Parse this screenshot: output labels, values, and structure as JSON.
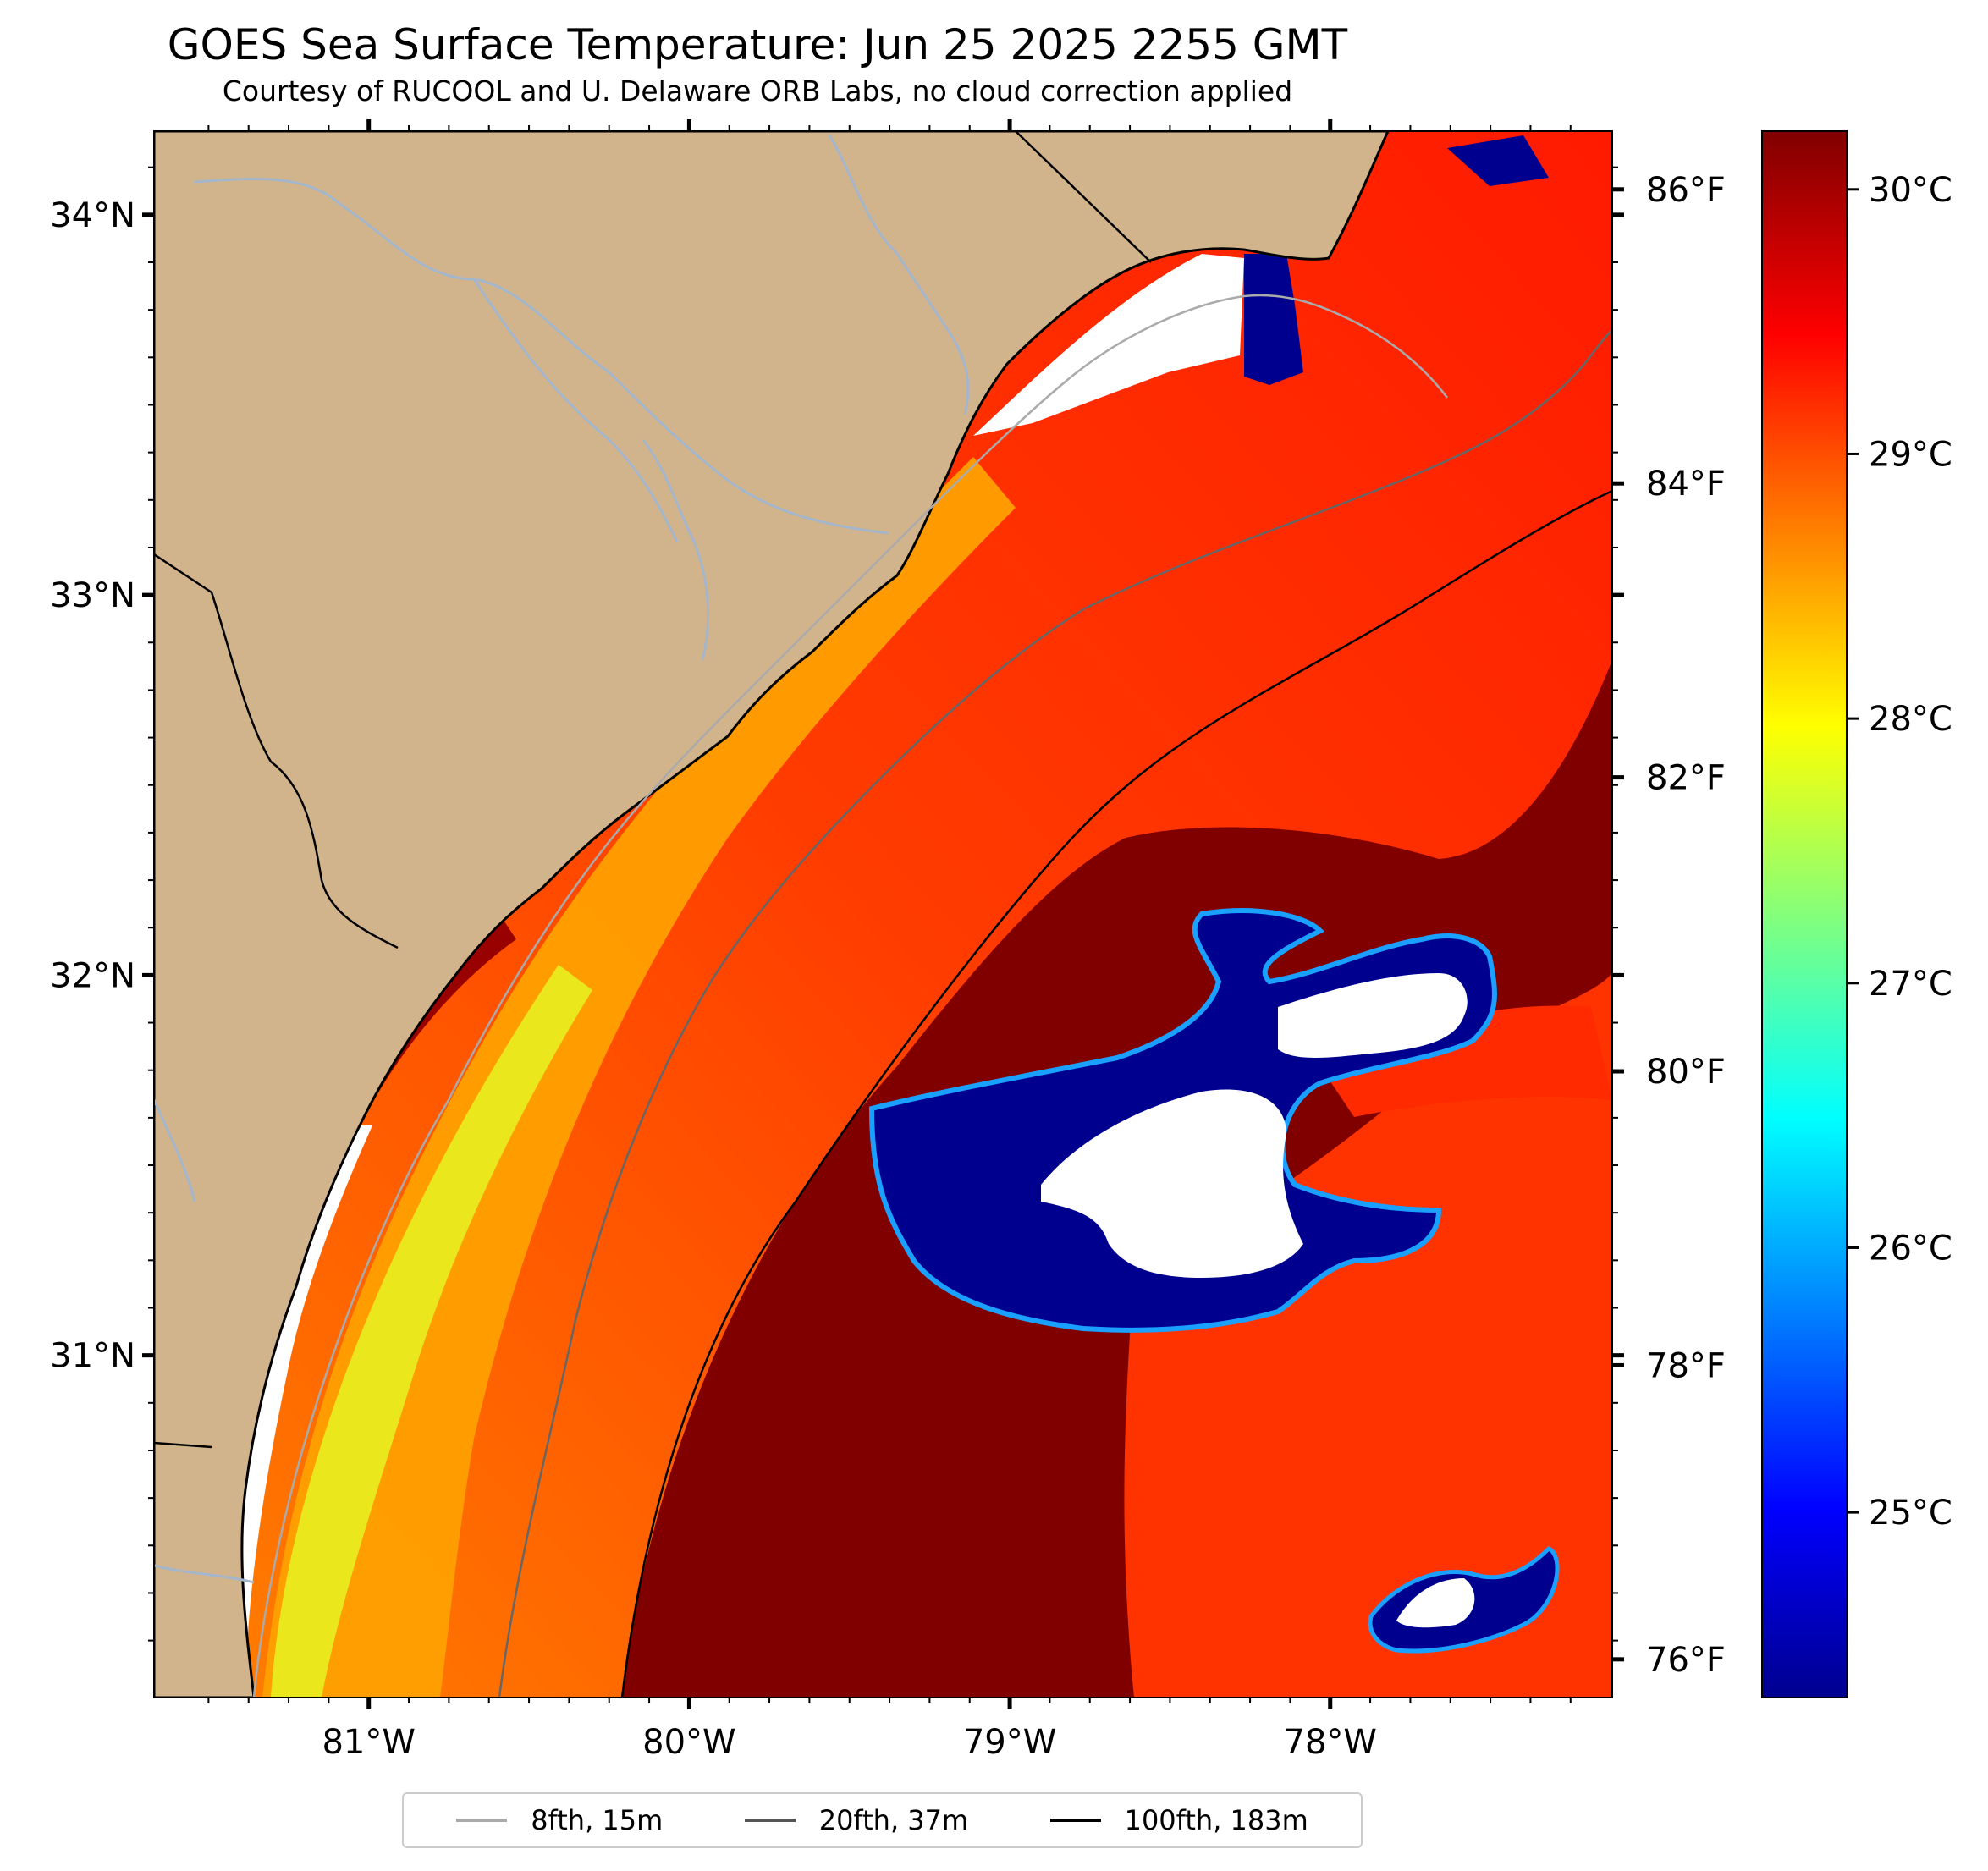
{
  "title": "GOES Sea Surface Temperature: Jun 25 2025 2255 GMT",
  "subtitle": "Courtesy of RUCOOL and U. Delaware ORB Labs, no cloud correction applied",
  "map": {
    "lon_range": [
      -81.67,
      -77.12
    ],
    "lat_range": [
      30.1,
      34.22
    ],
    "lon_ticks": [
      {
        "value": -81,
        "label": "81°W"
      },
      {
        "value": -80,
        "label": "80°W"
      },
      {
        "value": -79,
        "label": "79°W"
      },
      {
        "value": -78,
        "label": "78°W"
      }
    ],
    "lat_ticks": [
      {
        "value": 34,
        "label": "34°N"
      },
      {
        "value": 33,
        "label": "33°N"
      },
      {
        "value": 32,
        "label": "32°N"
      },
      {
        "value": 31,
        "label": "31°N"
      }
    ],
    "fahrenheit_ticks": [
      {
        "value": 86,
        "label": "86°F"
      },
      {
        "value": 84,
        "label": "84°F"
      },
      {
        "value": 82,
        "label": "82°F"
      },
      {
        "value": 80,
        "label": "80°F"
      },
      {
        "value": 78,
        "label": "78°F"
      },
      {
        "value": 76,
        "label": "76°F"
      }
    ],
    "colors": {
      "land": "#d2b48c",
      "no_data": "#ffffff",
      "rivers": "#a4b6cc"
    }
  },
  "colorbar": {
    "colormap": "jet",
    "range_c": [
      24.3,
      30.22
    ],
    "ticks": [
      {
        "value": 30,
        "label": "30°C"
      },
      {
        "value": 29,
        "label": "29°C"
      },
      {
        "value": 28,
        "label": "28°C"
      },
      {
        "value": 27,
        "label": "27°C"
      },
      {
        "value": 26,
        "label": "26°C"
      },
      {
        "value": 25,
        "label": "25°C"
      }
    ]
  },
  "legend": [
    {
      "label": "8fth, 15m",
      "color": "#aaaaaa"
    },
    {
      "label": "20fth, 37m",
      "color": "#555555"
    },
    {
      "label": "100fth, 183m",
      "color": "#000000"
    }
  ]
}
